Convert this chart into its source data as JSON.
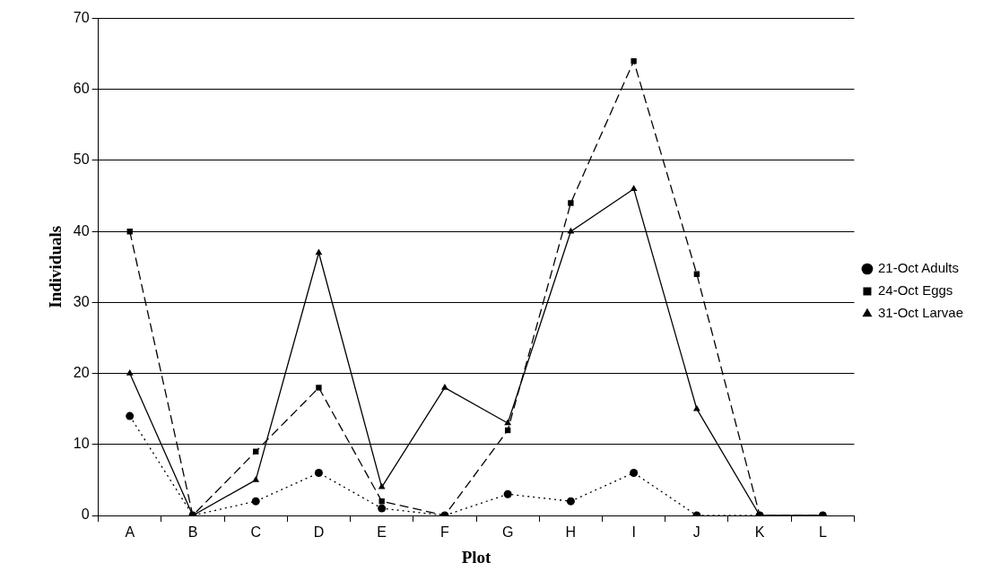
{
  "chart_data": {
    "type": "line",
    "xlabel": "Plot",
    "ylabel": "Individuals",
    "categories": [
      "A",
      "B",
      "C",
      "D",
      "E",
      "F",
      "G",
      "H",
      "I",
      "J",
      "K",
      "L"
    ],
    "series": [
      {
        "name": "21-Oct Adults",
        "color": "#000000",
        "marker": "circle",
        "line_style": "dotted",
        "values": [
          14,
          0,
          2,
          6,
          1,
          0,
          3,
          2,
          6,
          0,
          0,
          0
        ]
      },
      {
        "name": "24-Oct Eggs",
        "color": "#000000",
        "marker": "square",
        "line_style": "dashed",
        "values": [
          40,
          0,
          9,
          18,
          2,
          0,
          12,
          44,
          64,
          34,
          0,
          0
        ]
      },
      {
        "name": "31-Oct Larvae",
        "color": "#000000",
        "marker": "triangle",
        "line_style": "solid",
        "values": [
          20,
          0,
          5,
          37,
          4,
          18,
          13,
          40,
          46,
          15,
          0,
          0
        ]
      }
    ],
    "ylim": [
      0,
      70
    ],
    "yticks": [
      0,
      10,
      20,
      30,
      40,
      50,
      60,
      70
    ],
    "grid": "y",
    "legend": "right"
  }
}
